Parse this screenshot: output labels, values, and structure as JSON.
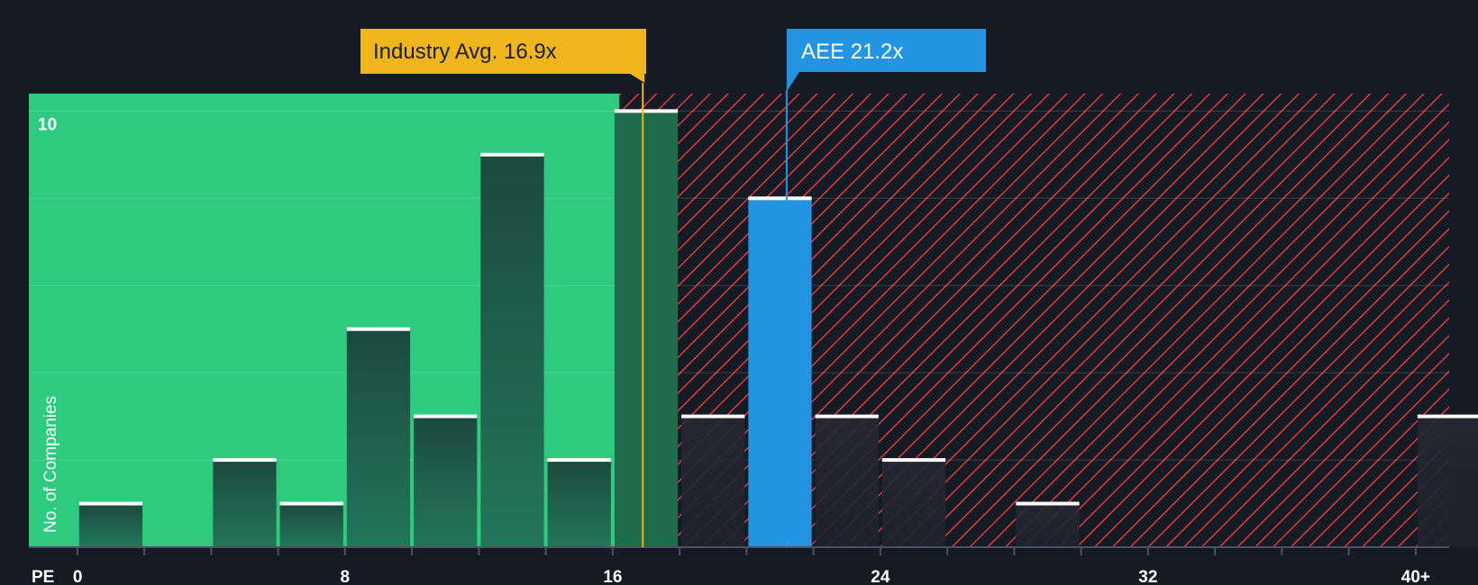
{
  "chart_data": {
    "type": "bar",
    "xlabel": "PE",
    "ylabel": "No. of Companies",
    "bin_width": 2,
    "bins_start": [
      0,
      2,
      4,
      6,
      8,
      10,
      12,
      14,
      16,
      18,
      20,
      22,
      24,
      26,
      28,
      30,
      32,
      34,
      36,
      38,
      40
    ],
    "values": [
      1,
      0,
      2,
      1,
      5,
      3,
      9,
      2,
      10,
      3,
      8,
      3,
      2,
      0,
      1,
      0,
      0,
      0,
      0,
      0,
      3
    ],
    "xticks": [
      {
        "value": 0,
        "label": "0"
      },
      {
        "value": 8,
        "label": "8"
      },
      {
        "value": 16,
        "label": "16"
      },
      {
        "value": 24,
        "label": "24"
      },
      {
        "value": 32,
        "label": "32"
      },
      {
        "value": 40,
        "label": "40+"
      }
    ],
    "yticks": [
      {
        "value": 10,
        "label": "10"
      }
    ],
    "ylim": [
      0,
      10.4
    ],
    "xlim": [
      -1.45,
      41.0
    ],
    "industry_avg": {
      "value": 16.9,
      "label": "Industry Avg. 16.9x"
    },
    "company": {
      "name": "AEE",
      "value": 21.2,
      "label": "AEE 21.2x",
      "bin_start": 20
    },
    "fair_zone_max": 16.2,
    "colors": {
      "background": "#151b24",
      "green_zone": "#2ecb7f",
      "red_hatch": "#e0393e",
      "bar_green": "#1f6b4b",
      "bar_dark": "#1b212b",
      "bar_highlight": "#2394e2",
      "industry": "#f0b41c",
      "company": "#2394e2"
    }
  }
}
